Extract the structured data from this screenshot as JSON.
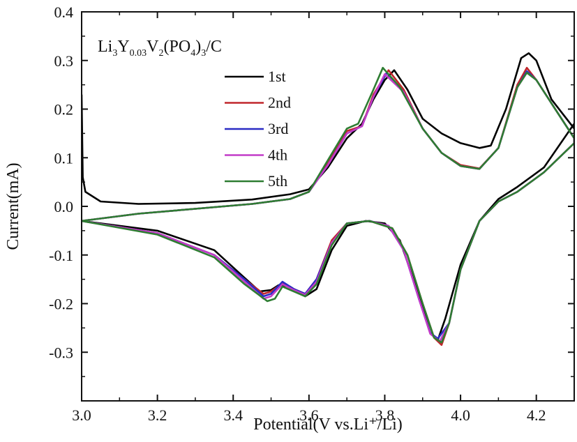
{
  "chart_data": {
    "type": "line",
    "xlabel": "Potential(V vs.Li⁺/Li)",
    "ylabel": "Current(mA)",
    "xlim": [
      3.0,
      4.3
    ],
    "ylim": [
      -0.4,
      0.4
    ],
    "xticks": [
      "3.0",
      "3.2",
      "3.4",
      "3.6",
      "3.8",
      "4.0",
      "4.2"
    ],
    "yticks": [
      "0.4",
      "0.3",
      "0.2",
      "0.1",
      "0.0",
      "-0.1",
      "-0.2",
      "-0.3"
    ],
    "legend_position": "upper-left",
    "annotation": {
      "main": "Li",
      "sub1": "3",
      "mid1": "Y",
      "sub2": "0.03",
      "mid2": "V",
      "sub3": "2",
      "mid3": "(PO",
      "sub4": "4",
      "mid4": ")",
      "sub5": "3",
      "tail": "/C"
    },
    "series": [
      {
        "name": "1st",
        "color": "#000000",
        "anodic": [
          [
            3.0,
            0.23
          ],
          [
            3.003,
            0.06
          ],
          [
            3.01,
            0.03
          ],
          [
            3.05,
            0.01
          ],
          [
            3.15,
            0.005
          ],
          [
            3.3,
            0.007
          ],
          [
            3.45,
            0.014
          ],
          [
            3.55,
            0.025
          ],
          [
            3.6,
            0.035
          ],
          [
            3.65,
            0.08
          ],
          [
            3.7,
            0.14
          ],
          [
            3.74,
            0.17
          ],
          [
            3.77,
            0.22
          ],
          [
            3.8,
            0.26
          ],
          [
            3.825,
            0.28
          ],
          [
            3.86,
            0.24
          ],
          [
            3.9,
            0.18
          ],
          [
            3.95,
            0.15
          ],
          [
            4.0,
            0.13
          ],
          [
            4.05,
            0.12
          ],
          [
            4.08,
            0.125
          ],
          [
            4.12,
            0.2
          ],
          [
            4.16,
            0.305
          ],
          [
            4.18,
            0.315
          ],
          [
            4.2,
            0.3
          ],
          [
            4.24,
            0.22
          ],
          [
            4.3,
            0.16
          ]
        ],
        "cathodic": [
          [
            4.3,
            0.17
          ],
          [
            4.22,
            0.08
          ],
          [
            4.15,
            0.04
          ],
          [
            4.1,
            0.015
          ],
          [
            4.05,
            -0.03
          ],
          [
            4.0,
            -0.12
          ],
          [
            3.96,
            -0.23
          ],
          [
            3.94,
            -0.275
          ],
          [
            3.92,
            -0.26
          ],
          [
            3.88,
            -0.16
          ],
          [
            3.84,
            -0.07
          ],
          [
            3.8,
            -0.035
          ],
          [
            3.75,
            -0.03
          ],
          [
            3.7,
            -0.04
          ],
          [
            3.66,
            -0.09
          ],
          [
            3.62,
            -0.17
          ],
          [
            3.59,
            -0.185
          ],
          [
            3.55,
            -0.165
          ],
          [
            3.52,
            -0.162
          ],
          [
            3.5,
            -0.172
          ],
          [
            3.47,
            -0.175
          ],
          [
            3.42,
            -0.14
          ],
          [
            3.35,
            -0.09
          ],
          [
            3.2,
            -0.05
          ],
          [
            3.0,
            -0.03
          ]
        ]
      },
      {
        "name": "2nd",
        "color": "#c0262b",
        "anodic": [
          [
            3.0,
            -0.03
          ],
          [
            3.15,
            -0.015
          ],
          [
            3.3,
            -0.005
          ],
          [
            3.45,
            0.005
          ],
          [
            3.55,
            0.015
          ],
          [
            3.6,
            0.03
          ],
          [
            3.65,
            0.09
          ],
          [
            3.7,
            0.155
          ],
          [
            3.74,
            0.165
          ],
          [
            3.77,
            0.23
          ],
          [
            3.81,
            0.28
          ],
          [
            3.85,
            0.24
          ],
          [
            3.9,
            0.16
          ],
          [
            3.95,
            0.11
          ],
          [
            4.0,
            0.085
          ],
          [
            4.05,
            0.078
          ],
          [
            4.1,
            0.12
          ],
          [
            4.15,
            0.25
          ],
          [
            4.175,
            0.285
          ],
          [
            4.2,
            0.26
          ],
          [
            4.25,
            0.2
          ],
          [
            4.3,
            0.14
          ]
        ],
        "cathodic": [
          [
            4.3,
            0.13
          ],
          [
            4.22,
            0.07
          ],
          [
            4.15,
            0.03
          ],
          [
            4.1,
            0.01
          ],
          [
            4.05,
            -0.03
          ],
          [
            4.0,
            -0.13
          ],
          [
            3.97,
            -0.24
          ],
          [
            3.95,
            -0.285
          ],
          [
            3.93,
            -0.27
          ],
          [
            3.9,
            -0.2
          ],
          [
            3.86,
            -0.1
          ],
          [
            3.82,
            -0.045
          ],
          [
            3.76,
            -0.03
          ],
          [
            3.7,
            -0.035
          ],
          [
            3.66,
            -0.07
          ],
          [
            3.62,
            -0.15
          ],
          [
            3.59,
            -0.18
          ],
          [
            3.56,
            -0.17
          ],
          [
            3.53,
            -0.158
          ],
          [
            3.5,
            -0.175
          ],
          [
            3.48,
            -0.18
          ],
          [
            3.43,
            -0.15
          ],
          [
            3.35,
            -0.1
          ],
          [
            3.2,
            -0.055
          ],
          [
            3.0,
            -0.03
          ]
        ]
      },
      {
        "name": "3rd",
        "color": "#2a2bc4",
        "anodic": [
          [
            3.0,
            -0.03
          ],
          [
            3.15,
            -0.015
          ],
          [
            3.3,
            -0.005
          ],
          [
            3.45,
            0.005
          ],
          [
            3.55,
            0.015
          ],
          [
            3.6,
            0.03
          ],
          [
            3.65,
            0.085
          ],
          [
            3.7,
            0.15
          ],
          [
            3.74,
            0.165
          ],
          [
            3.77,
            0.225
          ],
          [
            3.805,
            0.275
          ],
          [
            3.85,
            0.235
          ],
          [
            3.9,
            0.16
          ],
          [
            3.95,
            0.11
          ],
          [
            4.0,
            0.083
          ],
          [
            4.05,
            0.077
          ],
          [
            4.1,
            0.12
          ],
          [
            4.15,
            0.245
          ],
          [
            4.175,
            0.278
          ],
          [
            4.2,
            0.26
          ],
          [
            4.25,
            0.2
          ],
          [
            4.3,
            0.14
          ]
        ],
        "cathodic": [
          [
            4.3,
            0.13
          ],
          [
            4.22,
            0.07
          ],
          [
            4.15,
            0.03
          ],
          [
            4.1,
            0.01
          ],
          [
            4.05,
            -0.03
          ],
          [
            4.0,
            -0.13
          ],
          [
            3.97,
            -0.24
          ],
          [
            3.94,
            -0.272
          ],
          [
            3.92,
            -0.26
          ],
          [
            3.89,
            -0.19
          ],
          [
            3.85,
            -0.09
          ],
          [
            3.81,
            -0.04
          ],
          [
            3.76,
            -0.03
          ],
          [
            3.7,
            -0.035
          ],
          [
            3.66,
            -0.075
          ],
          [
            3.62,
            -0.15
          ],
          [
            3.59,
            -0.18
          ],
          [
            3.56,
            -0.17
          ],
          [
            3.53,
            -0.155
          ],
          [
            3.5,
            -0.18
          ],
          [
            3.48,
            -0.185
          ],
          [
            3.43,
            -0.15
          ],
          [
            3.35,
            -0.1
          ],
          [
            3.2,
            -0.055
          ],
          [
            3.0,
            -0.03
          ]
        ]
      },
      {
        "name": "4th",
        "color": "#c23cc8",
        "anodic": [
          [
            3.0,
            -0.03
          ],
          [
            3.15,
            -0.015
          ],
          [
            3.3,
            -0.005
          ],
          [
            3.45,
            0.005
          ],
          [
            3.55,
            0.015
          ],
          [
            3.6,
            0.03
          ],
          [
            3.65,
            0.085
          ],
          [
            3.7,
            0.15
          ],
          [
            3.74,
            0.165
          ],
          [
            3.77,
            0.225
          ],
          [
            3.8,
            0.272
          ],
          [
            3.85,
            0.235
          ],
          [
            3.9,
            0.16
          ],
          [
            3.95,
            0.11
          ],
          [
            4.0,
            0.083
          ],
          [
            4.05,
            0.077
          ],
          [
            4.1,
            0.12
          ],
          [
            4.15,
            0.245
          ],
          [
            4.175,
            0.275
          ],
          [
            4.2,
            0.26
          ],
          [
            4.25,
            0.2
          ],
          [
            4.3,
            0.14
          ]
        ],
        "cathodic": [
          [
            4.3,
            0.13
          ],
          [
            4.22,
            0.07
          ],
          [
            4.15,
            0.03
          ],
          [
            4.1,
            0.01
          ],
          [
            4.05,
            -0.03
          ],
          [
            4.0,
            -0.13
          ],
          [
            3.97,
            -0.24
          ],
          [
            3.945,
            -0.278
          ],
          [
            3.92,
            -0.262
          ],
          [
            3.89,
            -0.19
          ],
          [
            3.85,
            -0.09
          ],
          [
            3.81,
            -0.04
          ],
          [
            3.76,
            -0.03
          ],
          [
            3.7,
            -0.035
          ],
          [
            3.66,
            -0.075
          ],
          [
            3.62,
            -0.155
          ],
          [
            3.59,
            -0.182
          ],
          [
            3.56,
            -0.172
          ],
          [
            3.53,
            -0.16
          ],
          [
            3.5,
            -0.185
          ],
          [
            3.48,
            -0.19
          ],
          [
            3.43,
            -0.155
          ],
          [
            3.35,
            -0.1
          ],
          [
            3.2,
            -0.055
          ],
          [
            3.0,
            -0.03
          ]
        ]
      },
      {
        "name": "5th",
        "color": "#2e7d32",
        "anodic": [
          [
            3.0,
            -0.03
          ],
          [
            3.15,
            -0.015
          ],
          [
            3.3,
            -0.005
          ],
          [
            3.45,
            0.005
          ],
          [
            3.55,
            0.015
          ],
          [
            3.6,
            0.03
          ],
          [
            3.65,
            0.095
          ],
          [
            3.7,
            0.16
          ],
          [
            3.73,
            0.17
          ],
          [
            3.77,
            0.24
          ],
          [
            3.795,
            0.285
          ],
          [
            3.84,
            0.245
          ],
          [
            3.9,
            0.16
          ],
          [
            3.95,
            0.11
          ],
          [
            4.0,
            0.083
          ],
          [
            4.05,
            0.077
          ],
          [
            4.1,
            0.12
          ],
          [
            4.15,
            0.245
          ],
          [
            4.175,
            0.275
          ],
          [
            4.2,
            0.26
          ],
          [
            4.25,
            0.2
          ],
          [
            4.3,
            0.14
          ]
        ],
        "cathodic": [
          [
            4.3,
            0.13
          ],
          [
            4.22,
            0.07
          ],
          [
            4.15,
            0.03
          ],
          [
            4.1,
            0.01
          ],
          [
            4.05,
            -0.03
          ],
          [
            4.0,
            -0.13
          ],
          [
            3.97,
            -0.24
          ],
          [
            3.95,
            -0.28
          ],
          [
            3.93,
            -0.27
          ],
          [
            3.9,
            -0.2
          ],
          [
            3.86,
            -0.1
          ],
          [
            3.82,
            -0.045
          ],
          [
            3.76,
            -0.03
          ],
          [
            3.7,
            -0.035
          ],
          [
            3.66,
            -0.08
          ],
          [
            3.62,
            -0.16
          ],
          [
            3.59,
            -0.185
          ],
          [
            3.56,
            -0.175
          ],
          [
            3.53,
            -0.165
          ],
          [
            3.51,
            -0.19
          ],
          [
            3.49,
            -0.195
          ],
          [
            3.43,
            -0.16
          ],
          [
            3.35,
            -0.105
          ],
          [
            3.2,
            -0.058
          ],
          [
            3.0,
            -0.03
          ]
        ]
      }
    ]
  }
}
